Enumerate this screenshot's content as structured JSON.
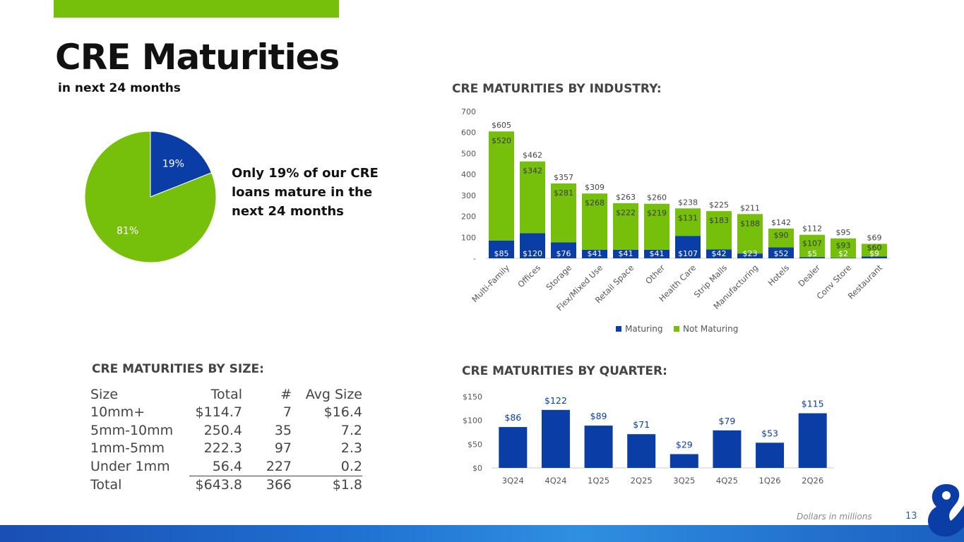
{
  "header": {
    "title": "CRE Maturities",
    "subtitle": "in next 24 months",
    "callout": "Only 19% of our CRE loans mature in the next 24 months"
  },
  "colors": {
    "green": "#76c00b",
    "blue": "#0a3ea6",
    "text": "#444444"
  },
  "footer": {
    "note": "Dollars in millions",
    "page": "13"
  },
  "size_section": {
    "title": "CRE MATURITIES BY SIZE:",
    "headers": [
      "Size",
      "Total",
      "#",
      "Avg Size"
    ],
    "rows": [
      [
        "10mm+",
        "$114.7",
        "7",
        "$16.4"
      ],
      [
        "5mm-10mm",
        "250.4",
        "35",
        "7.2"
      ],
      [
        "1mm-5mm",
        "222.3",
        "97",
        "2.3"
      ],
      [
        "Under 1mm",
        "56.4",
        "227",
        "0.2"
      ],
      [
        "Total",
        "$643.8",
        "366",
        "$1.8"
      ]
    ]
  },
  "chart_data": [
    {
      "type": "pie",
      "title": "",
      "slices": [
        {
          "label": "19%",
          "value": 19,
          "color": "#0a3ea6"
        },
        {
          "label": "81%",
          "value": 81,
          "color": "#76c00b"
        }
      ]
    },
    {
      "type": "bar",
      "stacked": true,
      "title": "CRE MATURITIES BY INDUSTRY:",
      "categories": [
        "Multi-Family",
        "Offices",
        "Storage",
        "Flex/Mixed Use",
        "Retail Space",
        "Other",
        "Health Care",
        "Strip Malls",
        "Manufacturing",
        "Hotels",
        "Dealer",
        "Conv Store",
        "Restaurant"
      ],
      "series": [
        {
          "name": "Maturing",
          "color": "#0a3ea6",
          "values": [
            85,
            120,
            76,
            41,
            41,
            41,
            107,
            42,
            23,
            52,
            5,
            2,
            9
          ],
          "labels": [
            "$85",
            "$120",
            "$76",
            "$41",
            "$41",
            "$41",
            "$107",
            "$42",
            "$23",
            "$52",
            "$5",
            "$2",
            "$9"
          ]
        },
        {
          "name": "Not Maturing",
          "color": "#76c00b",
          "values": [
            520,
            342,
            281,
            268,
            222,
            219,
            131,
            183,
            188,
            90,
            107,
            93,
            60
          ],
          "labels": [
            "$520",
            "$342",
            "$281",
            "$268",
            "$222",
            "$219",
            "$131",
            "$183",
            "$188",
            "$90",
            "$107",
            "$93",
            "$60"
          ]
        }
      ],
      "totals": [
        "$605",
        "$462",
        "$357",
        "$309",
        "$263",
        "$260",
        "$238",
        "$225",
        "$211",
        "$142",
        "$112",
        "$95",
        "$69"
      ],
      "ylim": [
        0,
        700
      ],
      "yticks": [
        "-",
        "100",
        "200",
        "300",
        "400",
        "500",
        "600",
        "700"
      ],
      "legend": "bottom"
    },
    {
      "type": "bar",
      "title": "CRE MATURITIES BY QUARTER:",
      "categories": [
        "3Q24",
        "4Q24",
        "1Q25",
        "2Q25",
        "3Q25",
        "4Q25",
        "1Q26",
        "2Q26"
      ],
      "values": [
        86,
        122,
        89,
        71,
        29,
        79,
        53,
        115
      ],
      "labels": [
        "$86",
        "$122",
        "$89",
        "$71",
        "$29",
        "$79",
        "$53",
        "$115"
      ],
      "ylim": [
        0,
        150
      ],
      "yticks": [
        "$0",
        "$50",
        "$100",
        "$150"
      ],
      "color": "#0a3ea6"
    }
  ]
}
